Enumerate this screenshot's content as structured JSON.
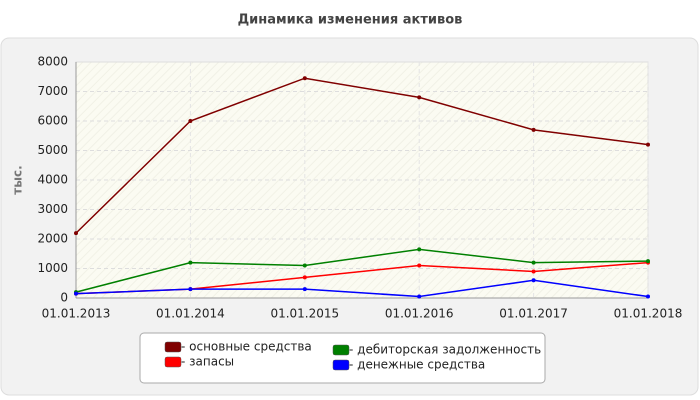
{
  "chart_data": {
    "type": "line",
    "title": "Динамика изменения активов",
    "y_label": "тыс.",
    "categories": [
      "01.01.2013",
      "01.01.2014",
      "01.01.2015",
      "01.01.2016",
      "01.01.2017",
      "01.01.2018"
    ],
    "series": [
      {
        "name": "- основные средства",
        "color": "#800000",
        "values": [
          2200,
          6000,
          7450,
          6800,
          5700,
          5200
        ]
      },
      {
        "name": "- запасы",
        "color": "#ff0000",
        "values": [
          150,
          300,
          700,
          1100,
          900,
          1200
        ]
      },
      {
        "name": "- дебиторская задолженность",
        "color": "#008000",
        "values": [
          200,
          1200,
          1100,
          1650,
          1200,
          1250
        ]
      },
      {
        "name": "- денежные средства",
        "color": "#0000ff",
        "values": [
          150,
          300,
          300,
          50,
          600,
          50
        ]
      }
    ],
    "ylim": [
      0,
      8000
    ],
    "yticks": [
      0,
      1000,
      2000,
      3000,
      4000,
      5000,
      6000,
      7000,
      8000
    ],
    "grid": true
  }
}
